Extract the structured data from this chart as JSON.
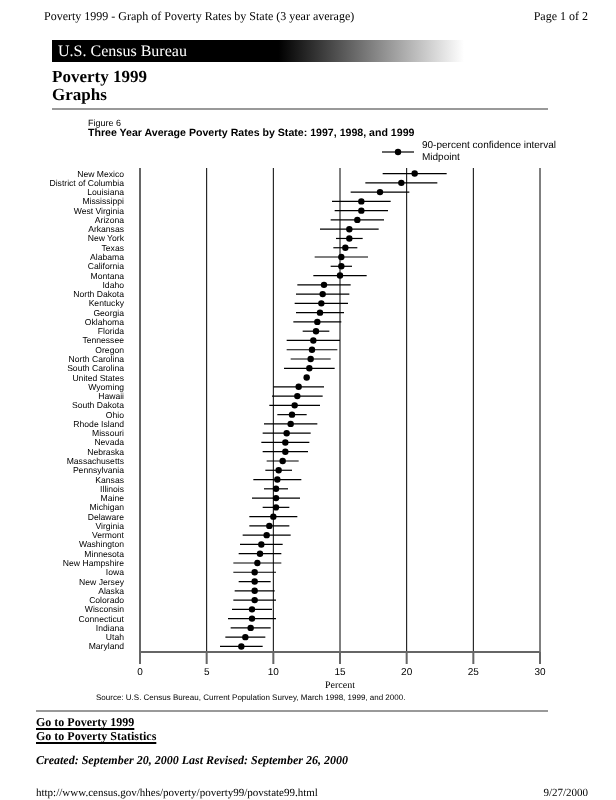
{
  "chart_data": {
    "type": "scatter",
    "subtitle": "Figure 6",
    "title": "Three Year Average Poverty Rates by State: 1997, 1998, and 1999",
    "xlabel": "Percent",
    "annotations": [
      "Poverty 1999 - Graph of Poverty Rates by State (3 year average)",
      "Page 1 of 2",
      "U.S. Census Bureau",
      "Poverty 1999",
      "Graphs",
      "90-percent confidence interval",
      "Source: U.S. Census Bureau, Current Population Survey, March 1998, 1999, and 2000.",
      "Go to Poverty 1999",
      "Go to Poverty Statistics",
      "Created: September 20, 2000 Last Revised: September 26, 2000",
      "http://www.census.gov/hhes/poverty/poverty99/povstate99.html",
      "9/27/2000"
    ],
    "categories": [
      "New Mexico",
      "District of Columbia",
      "Louisiana",
      "Mississippi",
      "West Virginia",
      "Arizona",
      "Arkansas",
      "New York",
      "Texas",
      "Alabama",
      "California",
      "Montana",
      "Idaho",
      "North Dakota",
      "Kentucky",
      "Georgia",
      "Oklahoma",
      "Florida",
      "Tennessee",
      "Oregon",
      "North Carolina",
      "South Carolina",
      "United States",
      "Wyoming",
      "Hawaii",
      "South Dakota",
      "Ohio",
      "Rhode Island",
      "Missouri",
      "Nevada",
      "Nebraska",
      "Massachusetts",
      "Pennsylvania",
      "Kansas",
      "Illinois",
      "Maine",
      "Michigan",
      "Delaware",
      "Virginia",
      "Vermont",
      "Washington",
      "Minnesota",
      "New Hampshire",
      "Iowa",
      "New Jersey",
      "Alaska",
      "Colorado",
      "Wisconsin",
      "Connecticut",
      "Indiana",
      "Utah",
      "Maryland"
    ],
    "series": [
      {
        "name": "Midpoint",
        "color": "#000000",
        "values": [
          20.6,
          19.6,
          18.0,
          16.6,
          16.6,
          16.3,
          15.7,
          15.7,
          15.4,
          15.1,
          15.1,
          15.0,
          13.8,
          13.7,
          13.6,
          13.5,
          13.3,
          13.2,
          13.0,
          12.9,
          12.8,
          12.7,
          12.5,
          11.9,
          11.8,
          11.6,
          11.4,
          11.3,
          11.0,
          10.9,
          10.9,
          10.7,
          10.4,
          10.3,
          10.2,
          10.2,
          10.2,
          10.0,
          9.7,
          9.5,
          9.1,
          9.0,
          8.8,
          8.6,
          8.6,
          8.6,
          8.6,
          8.4,
          8.4,
          8.3,
          7.9,
          7.6
        ],
        "errors": [
          2.4,
          2.7,
          2.2,
          2.2,
          2.0,
          2.0,
          2.2,
          1.0,
          0.9,
          2.0,
          0.8,
          2.0,
          2.0,
          2.0,
          2.0,
          1.8,
          1.8,
          1.0,
          2.0,
          1.9,
          1.5,
          1.9,
          0.2,
          1.9,
          1.9,
          1.9,
          1.1,
          2.0,
          1.8,
          1.8,
          1.7,
          1.2,
          1.0,
          1.8,
          0.9,
          1.8,
          1.0,
          1.8,
          1.5,
          1.8,
          1.6,
          1.6,
          1.8,
          1.6,
          1.2,
          1.5,
          1.6,
          1.5,
          1.8,
          1.5,
          1.5,
          1.6
        ]
      }
    ],
    "orientation": "horizontal",
    "xlim": [
      0,
      30
    ],
    "xticks": [
      0,
      5,
      10,
      15,
      20,
      25,
      30
    ],
    "grid": "x",
    "legend": "top right",
    "marker": "circle"
  }
}
